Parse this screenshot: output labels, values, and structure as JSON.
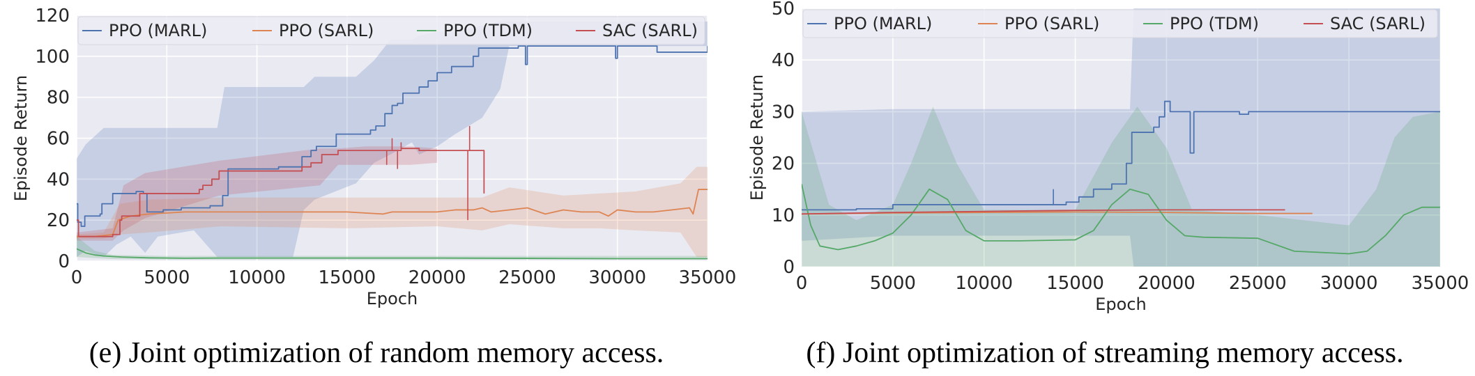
{
  "colors": {
    "plot_bg": "#eaeaf2",
    "grid": "#ffffff",
    "ppo_marl": "#4c72b0",
    "ppo_sarl": "#dd8452",
    "ppo_tdm": "#55a868",
    "sac_sarl": "#c44e52",
    "legend_bg": "#ececf4"
  },
  "chart_data": [
    {
      "type": "line",
      "caption": "(e) Joint optimization of random memory access.",
      "xlabel": "Epoch",
      "ylabel": "Episode Return",
      "xlim": [
        0,
        35000
      ],
      "ylim": [
        0,
        120
      ],
      "xticks": [
        0,
        5000,
        10000,
        15000,
        20000,
        25000,
        30000,
        35000
      ],
      "yticks": [
        0,
        20,
        40,
        60,
        80,
        100,
        120
      ],
      "grid": true,
      "legend": "top, horizontal",
      "series": [
        {
          "name": "PPO (MARL)",
          "color_key": "ppo_marl",
          "step": true,
          "x": [
            0,
            60,
            250,
            450,
            1300,
            1400,
            2000,
            2400,
            3000,
            3300,
            3600,
            3700,
            3900,
            4200,
            4800,
            5800,
            6400,
            7000,
            7400,
            8100,
            8400,
            9800,
            10600,
            11200,
            12000,
            12500,
            13000,
            13300,
            13700,
            14400,
            14900,
            15400,
            16300,
            16600,
            17100,
            17500,
            17800,
            18100,
            18700,
            19000,
            19500,
            20000,
            20800,
            22000,
            22300,
            22500,
            23800,
            24500,
            24800,
            24900,
            25000,
            29800,
            29900,
            30000,
            32000,
            32200,
            35000
          ],
          "y": [
            28,
            19,
            17,
            22,
            23,
            28,
            33,
            33,
            33,
            34,
            34,
            33,
            24,
            24,
            25,
            26,
            26,
            26,
            27,
            32,
            45,
            45,
            45,
            46,
            46,
            51,
            54,
            56,
            56,
            62,
            62,
            62,
            64,
            66,
            72,
            76,
            77,
            82,
            82,
            85,
            88,
            92,
            95,
            100,
            104,
            104,
            104,
            105,
            105,
            96,
            105,
            105,
            99,
            105,
            105,
            102,
            105
          ],
          "band_x": [
            0,
            500,
            1500,
            2200,
            3000,
            3800,
            4500,
            6500,
            7800,
            8200,
            12000,
            12600,
            13200,
            15500,
            16500,
            17400,
            18000,
            18600,
            19000,
            20000,
            21000,
            22500,
            23500,
            24000,
            35000
          ],
          "band_lower": [
            2,
            5,
            2,
            8,
            12,
            4,
            12,
            15,
            2,
            2,
            2,
            25,
            30,
            38,
            48,
            52,
            55,
            58,
            52,
            56,
            62,
            70,
            84,
            105,
            105
          ],
          "band_upper": [
            50,
            57,
            65,
            65,
            65,
            65,
            65,
            65,
            65,
            85,
            85,
            85,
            90,
            90,
            98,
            108,
            108,
            108,
            110,
            112,
            112,
            115,
            117,
            117,
            117
          ]
        },
        {
          "name": "PPO (SARL)",
          "color_key": "ppo_sarl",
          "step": false,
          "x": [
            0,
            1000,
            2000,
            2300,
            3000,
            4000,
            6000,
            10000,
            15000,
            17000,
            17500,
            20000,
            21000,
            22000,
            22500,
            23000,
            24000,
            25000,
            26000,
            27000,
            28000,
            29000,
            29500,
            30000,
            31000,
            32000,
            33000,
            34000,
            34200,
            34500,
            35000
          ],
          "y": [
            12,
            12,
            13,
            20,
            22,
            23,
            24,
            24,
            24,
            23,
            24,
            24,
            25,
            25,
            26,
            24,
            25,
            26,
            23,
            25,
            24,
            24,
            22,
            25,
            24,
            24,
            25,
            26,
            23,
            35,
            35
          ],
          "band_x": [
            0,
            1500,
            2400,
            4000,
            8000,
            15000,
            20000,
            22500,
            24000,
            27000,
            29000,
            31000,
            33500,
            34400,
            35000
          ],
          "band_lower": [
            11,
            11,
            13,
            14,
            17,
            16,
            17,
            15,
            18,
            16,
            16,
            15,
            14,
            2,
            2
          ],
          "band_upper": [
            13,
            14,
            28,
            30,
            31,
            31,
            31,
            31,
            36,
            32,
            33,
            34,
            38,
            46,
            46
          ]
        },
        {
          "name": "PPO (TDM)",
          "color_key": "ppo_tdm",
          "step": false,
          "x": [
            0,
            500,
            1000,
            1500,
            2500,
            4000,
            6000,
            8000,
            10000,
            20000,
            30000,
            35000
          ],
          "y": [
            6,
            4,
            3,
            2.5,
            2,
            1.6,
            1.4,
            1.5,
            1.5,
            1.5,
            1.2,
            1.2
          ],
          "band_x": [
            0,
            1000,
            2000,
            5000,
            10000,
            35000
          ],
          "band_lower": [
            2,
            1.5,
            1,
            0.8,
            0.8,
            0.8
          ],
          "band_upper": [
            12,
            5,
            3,
            2.5,
            2.5,
            2.5
          ]
        },
        {
          "name": "SAC (SARL)",
          "color_key": "sac_sarl",
          "step": true,
          "x": [
            0,
            100,
            1600,
            2000,
            2400,
            2500,
            3500,
            3800,
            6500,
            6800,
            7000,
            7500,
            7900,
            11000,
            12500,
            13000,
            13600,
            14500,
            17000,
            18000,
            19000,
            21700,
            22000,
            22500,
            22600
          ],
          "y": [
            20,
            12,
            12,
            13,
            20,
            22,
            33,
            33,
            33,
            35,
            37,
            40,
            44,
            44,
            46,
            48,
            52,
            54,
            54,
            55,
            54,
            54,
            54,
            54,
            33
          ],
          "spikes": [
            [
              17200,
              47
            ],
            [
              17500,
              60
            ],
            [
              17800,
              45
            ],
            [
              18000,
              58
            ],
            [
              21700,
              20
            ],
            [
              21800,
              66
            ]
          ],
          "band_x": [
            0,
            2000,
            2600,
            3800,
            7900,
            13500,
            14500,
            16000,
            18500,
            20000
          ],
          "band_lower": [
            10,
            10,
            15,
            21,
            32,
            37,
            47,
            47,
            47,
            48
          ],
          "band_upper": [
            14,
            16,
            37,
            43,
            49,
            55,
            55,
            56,
            56,
            55
          ]
        }
      ]
    },
    {
      "type": "line",
      "caption": "(f) Joint optimization of streaming memory access.",
      "xlabel": "Epoch",
      "ylabel": "Episode Return",
      "xlim": [
        0,
        35000
      ],
      "ylim": [
        0,
        50
      ],
      "xticks": [
        0,
        5000,
        10000,
        15000,
        20000,
        25000,
        30000,
        35000
      ],
      "yticks": [
        0,
        10,
        20,
        30,
        40,
        50
      ],
      "grid": true,
      "legend": "top, horizontal",
      "series": [
        {
          "name": "PPO (MARL)",
          "color_key": "ppo_marl",
          "step": true,
          "x": [
            0,
            3000,
            5000,
            13800,
            14500,
            15200,
            16000,
            17000,
            17800,
            18100,
            19300,
            19600,
            19900,
            20200,
            21100,
            21300,
            21500,
            23500,
            24000,
            24500,
            35000
          ],
          "y": [
            11,
            11.2,
            12,
            12,
            12.5,
            13.5,
            15,
            16,
            20,
            26,
            27,
            29,
            32,
            30,
            30,
            22,
            30,
            30,
            29.5,
            30,
            30
          ],
          "spikes": [
            [
              13800,
              15
            ]
          ],
          "band_x": [
            0,
            5000,
            10000,
            15000,
            18000,
            18200,
            21000,
            21300,
            35000
          ],
          "band_lower": [
            5,
            6,
            6,
            6,
            6,
            0,
            0,
            0,
            0
          ],
          "band_upper": [
            30,
            30.5,
            30.5,
            30.5,
            30.5,
            50,
            50,
            50,
            50
          ]
        },
        {
          "name": "PPO (SARL)",
          "color_key": "ppo_sarl",
          "step": false,
          "x": [
            0,
            5000,
            10000,
            15000,
            20000,
            25000,
            28000
          ],
          "y": [
            10.2,
            10.4,
            10.5,
            10.6,
            10.5,
            10.3,
            10.3
          ],
          "band_x": [],
          "band_lower": [],
          "band_upper": []
        },
        {
          "name": "PPO (TDM)",
          "color_key": "ppo_tdm",
          "step": false,
          "x": [
            0,
            500,
            1000,
            2000,
            3000,
            4000,
            5000,
            6000,
            7000,
            8000,
            9000,
            10000,
            12000,
            15000,
            16000,
            17000,
            18000,
            19000,
            20000,
            21000,
            22000,
            25000,
            27000,
            30000,
            31000,
            32000,
            33000,
            34000,
            35000
          ],
          "y": [
            16,
            8,
            4,
            3.3,
            4,
            5,
            6.5,
            10,
            15,
            13,
            7,
            5,
            5,
            5.2,
            7,
            12,
            15,
            14,
            9,
            6,
            5.7,
            5.5,
            3,
            2.5,
            3,
            6,
            10,
            11.5,
            11.5
          ],
          "band_x": [
            0,
            1500,
            3000,
            5000,
            6000,
            7200,
            8500,
            10000,
            15000,
            17000,
            18400,
            20000,
            21400,
            25000,
            30000,
            31500,
            32500,
            33500,
            35000
          ],
          "band_lower": [
            0,
            0,
            0,
            0,
            0,
            0,
            0,
            0,
            0,
            0,
            0,
            0,
            0,
            0,
            0,
            0,
            0,
            0,
            0
          ],
          "band_upper": [
            30,
            12,
            9,
            12,
            20,
            31,
            20,
            11,
            11,
            24,
            31,
            23,
            11,
            10,
            8,
            15,
            25,
            29,
            30
          ]
        },
        {
          "name": "SAC (SARL)",
          "color_key": "sac_sarl",
          "step": false,
          "x": [
            0,
            5000,
            10000,
            15000,
            20000,
            25000,
            26500
          ],
          "y": [
            10.2,
            10.5,
            10.7,
            10.9,
            11,
            11,
            11
          ],
          "band_x": [],
          "band_lower": [],
          "band_upper": []
        }
      ]
    }
  ]
}
